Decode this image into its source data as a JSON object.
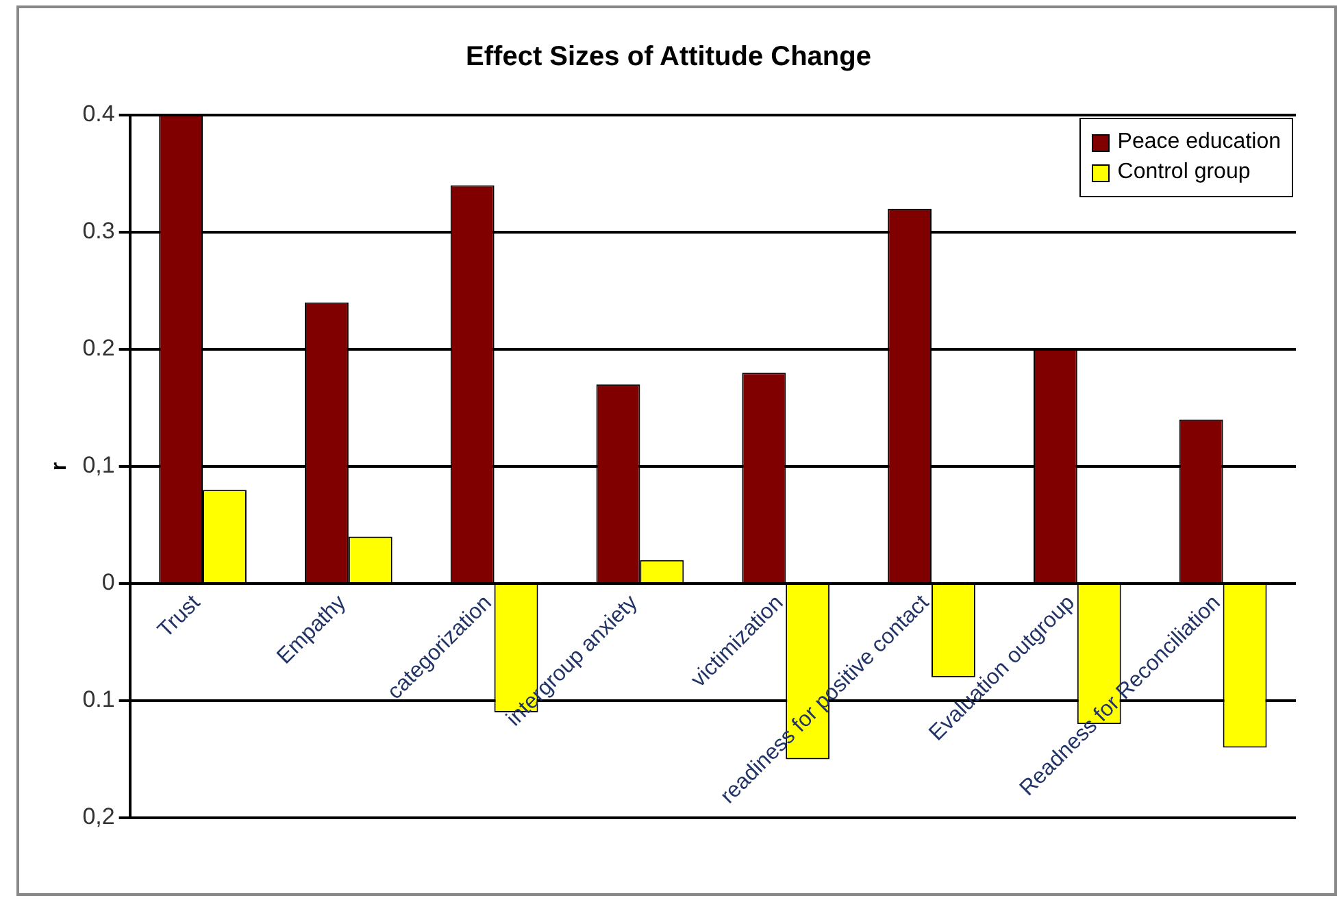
{
  "chart_data": {
    "type": "bar",
    "title": "Effect Sizes of Attitude Change",
    "ylabel": "r",
    "categories": [
      "Trust",
      "Empathy",
      "categorization",
      "intergroup anxiety",
      "victimization",
      "readiness for positive contact",
      "Evaluation outgroup",
      "Readness for Reconciliation"
    ],
    "series": [
      {
        "name": "Peace education",
        "color": "#800000",
        "values": [
          0.4,
          0.24,
          0.34,
          0.17,
          0.18,
          0.32,
          0.2,
          0.14
        ]
      },
      {
        "name": "Control group",
        "color": "#ffff00",
        "values": [
          0.08,
          0.04,
          -0.11,
          0.02,
          -0.15,
          -0.08,
          -0.12,
          -0.14
        ]
      }
    ],
    "ylim": [
      -0.2,
      0.4
    ],
    "yticks": [
      {
        "value": -0.2,
        "label": "0,2"
      },
      {
        "value": -0.1,
        "label": "0.1"
      },
      0,
      {
        "value": 0.1,
        "label": "0,1"
      },
      0.2,
      0.3,
      0.4
    ],
    "grid": "y",
    "legend": "top right"
  }
}
